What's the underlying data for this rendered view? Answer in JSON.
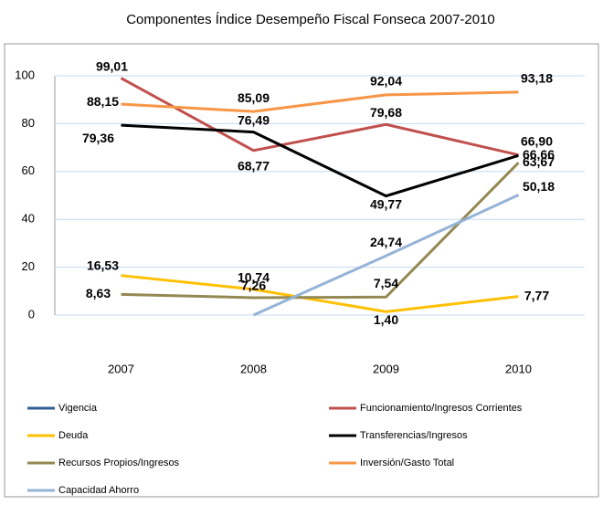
{
  "chart_data": {
    "type": "line",
    "title": "Componentes Índice Desempeño Fiscal Fonseca 2007-2010",
    "categories": [
      "2007",
      "2008",
      "2009",
      "2010"
    ],
    "series": [
      {
        "name": "Vigencia",
        "color": "#2f5f96",
        "values": [
          null,
          null,
          null,
          null
        ]
      },
      {
        "name": "Funcionamiento/Ingresos Corrientes",
        "color": "#c0504d",
        "values": [
          99.01,
          68.77,
          79.68,
          66.9
        ],
        "value_labels": [
          "99,01",
          "68,77",
          "79,68",
          "66,90"
        ]
      },
      {
        "name": "Deuda",
        "color": "#ffc000",
        "values": [
          16.53,
          10.74,
          1.4,
          7.77
        ],
        "value_labels": [
          "16,53",
          "10,74",
          "1,40",
          "7,77"
        ]
      },
      {
        "name": "Transferencias/Ingresos",
        "color": "#000000",
        "values": [
          79.36,
          76.49,
          49.77,
          66.66
        ],
        "value_labels": [
          "79,36",
          "76,49",
          "49,77",
          "66,66"
        ]
      },
      {
        "name": "Recursos Propios/Ingresos",
        "color": "#938953",
        "values": [
          8.63,
          7.26,
          7.54,
          63.67
        ],
        "value_labels": [
          "8,63",
          "7,26",
          "7,54",
          "63,67"
        ]
      },
      {
        "name": "Inversión/Gasto Total",
        "color": "#f79646",
        "values": [
          88.15,
          85.09,
          92.04,
          93.18
        ],
        "value_labels": [
          "88,15",
          "85,09",
          "92,04",
          "93,18"
        ]
      },
      {
        "name": "Capacidad Ahorro",
        "color": "#95b3d7",
        "values": [
          null,
          0,
          24.74,
          50.18
        ],
        "value_labels": [
          null,
          null,
          "24,74",
          "50,18"
        ]
      }
    ],
    "ylim": [
      0,
      100
    ],
    "yticks": [
      0,
      20,
      40,
      60,
      80,
      100
    ],
    "grid": true
  }
}
